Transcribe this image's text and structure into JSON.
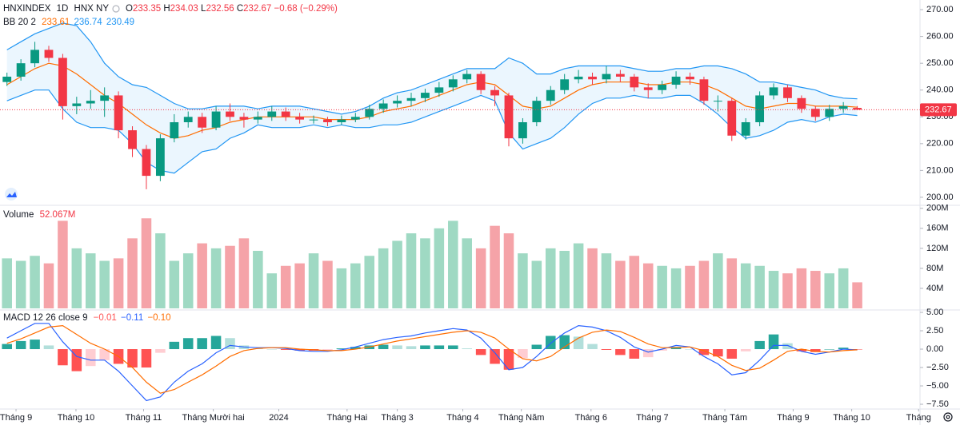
{
  "chart_data": [
    {
      "type": "candlestick",
      "symbol": "HNXINDEX",
      "interval": "1D",
      "exchange": "HNX NY",
      "ohlc_labels": [
        "O",
        "H",
        "L",
        "C"
      ],
      "change": "−0.68 (−0.29%)",
      "open": [
        243,
        245,
        250,
        255,
        252,
        234,
        235,
        236,
        238,
        225,
        218,
        208,
        222,
        228,
        230,
        226,
        232,
        230,
        229,
        230,
        232,
        230,
        229,
        229,
        228,
        229,
        230,
        233,
        235,
        236,
        237,
        239,
        241,
        244,
        246,
        240,
        238,
        222,
        228,
        236,
        240,
        244,
        245,
        244,
        246,
        245,
        241,
        240,
        242,
        245,
        244,
        236,
        236,
        223,
        228,
        238,
        241,
        237,
        233,
        230,
        233,
        233.35
      ],
      "high": [
        246.5,
        251.5,
        258,
        256.5,
        253.5,
        237.5,
        240,
        241,
        239.5,
        226.5,
        219.5,
        223.5,
        231,
        232,
        231.5,
        234,
        235,
        231.5,
        232,
        234,
        233.5,
        231.5,
        230.5,
        230,
        230.5,
        231.5,
        234.5,
        236.5,
        238,
        239,
        240.5,
        243,
        245.5,
        247.5,
        247,
        241.5,
        239,
        229.5,
        237.5,
        241.5,
        246,
        247.5,
        246.5,
        249,
        247.5,
        246,
        242.5,
        243.5,
        247,
        246.5,
        245,
        238,
        237,
        229.5,
        239.5,
        242.5,
        242,
        238,
        234,
        234.5,
        235.5,
        234.03
      ],
      "low": [
        241.5,
        243.5,
        248.5,
        250.5,
        229,
        231,
        233,
        230,
        222,
        215,
        203,
        206,
        220.5,
        226,
        224,
        225,
        228.5,
        226,
        227.5,
        228.5,
        228.5,
        227.5,
        227.5,
        226.5,
        227,
        228,
        229,
        231.5,
        233.5,
        234,
        235.5,
        237.5,
        239.5,
        242.5,
        238.5,
        234,
        219,
        220,
        226.5,
        234.5,
        238.5,
        242.5,
        242,
        242.5,
        243,
        239.5,
        237,
        238.5,
        240.5,
        242,
        234.5,
        232,
        221,
        221.5,
        226.5,
        236.5,
        235.5,
        231.5,
        228.5,
        228.5,
        231.5,
        232.56
      ],
      "close": [
        245,
        250,
        255,
        252,
        234,
        235,
        236,
        238,
        225,
        218,
        208,
        222,
        228,
        230,
        226,
        232,
        230,
        229,
        230,
        232,
        230,
        229,
        229,
        228,
        229,
        230,
        233,
        235,
        236,
        237,
        239,
        241,
        244,
        246,
        240,
        238,
        222,
        228,
        236,
        240,
        244,
        245,
        244,
        246,
        245,
        241,
        240,
        242,
        245,
        244,
        236,
        236,
        223,
        228,
        238,
        241,
        237,
        233,
        230,
        233,
        234,
        232.67
      ],
      "up_color": "#089981",
      "down_color": "#f23645",
      "bb": {
        "name": "BB 20 2",
        "upper": [
          255,
          258,
          261,
          263,
          265,
          264,
          258,
          250,
          245,
          242,
          241,
          238,
          235,
          233,
          233,
          234,
          234,
          234,
          233,
          234,
          234,
          234,
          233,
          232,
          231,
          232,
          234,
          237,
          239,
          240,
          242,
          244,
          246,
          248,
          248,
          248,
          252,
          250,
          246,
          246,
          248,
          249,
          249,
          249,
          249,
          248,
          247,
          247,
          248,
          248,
          249,
          249,
          248,
          246,
          243,
          243,
          242,
          241,
          240,
          238,
          237,
          236.74
        ],
        "basis": [
          242,
          245,
          248,
          250,
          249,
          246,
          242,
          238,
          235,
          231,
          227,
          224,
          222,
          223,
          225,
          226,
          228,
          229,
          230,
          230,
          230,
          230,
          230,
          229,
          229,
          229,
          230,
          232,
          233,
          234,
          236,
          238,
          240,
          242,
          243,
          242,
          238,
          234,
          233,
          234,
          237,
          240,
          242,
          243,
          243,
          243,
          242,
          242,
          243,
          243,
          242,
          240,
          237,
          234,
          233,
          234,
          235,
          235,
          234,
          234,
          234,
          233.61
        ],
        "lower": [
          236,
          238,
          240,
          240,
          233,
          228,
          226,
          226,
          225,
          220,
          213,
          210,
          209,
          213,
          217,
          218,
          222,
          224,
          227,
          226,
          226,
          226,
          227,
          226,
          227,
          226,
          226,
          227,
          227,
          228,
          230,
          232,
          234,
          236,
          238,
          236,
          224,
          218,
          220,
          222,
          226,
          231,
          235,
          237,
          237,
          238,
          237,
          237,
          238,
          238,
          235,
          231,
          226,
          222,
          223,
          225,
          228,
          229,
          228,
          230,
          231,
          230.49
        ],
        "band_color": "#2196f3",
        "basis_color": "#ff6d00",
        "fill": "rgba(33,150,243,0.09)"
      },
      "xlim": [
        -0.5,
        65.5
      ],
      "ylim": [
        197,
        273.6
      ],
      "yticks": [
        {
          "value": 200,
          "label": "200.00"
        },
        {
          "value": 210,
          "label": "210.00"
        },
        {
          "value": 220,
          "label": "220.00"
        },
        {
          "value": 230,
          "label": "230.00"
        },
        {
          "value": 240,
          "label": "240.00"
        },
        {
          "value": 250,
          "label": "250.00"
        },
        {
          "value": 260,
          "label": "260.00"
        },
        {
          "value": 270,
          "label": "270.00"
        }
      ]
    },
    {
      "type": "bar",
      "name": "Volume",
      "legend_value": "52.067M",
      "values": [
        100,
        95,
        105,
        90,
        175,
        120,
        110,
        95,
        100,
        140,
        180,
        150,
        95,
        110,
        130,
        120,
        125,
        140,
        115,
        70,
        85,
        90,
        110,
        95,
        80,
        90,
        105,
        120,
        135,
        150,
        140,
        160,
        175,
        140,
        120,
        165,
        150,
        110,
        95,
        120,
        115,
        130,
        120,
        110,
        95,
        105,
        90,
        85,
        80,
        85,
        95,
        110,
        100,
        90,
        85,
        75,
        70,
        80,
        75,
        70,
        80,
        52.067
      ],
      "up_color": "#9fd9c3",
      "down_color": "#f5a3a8",
      "xlim": [
        -0.5,
        65.5
      ],
      "ylim": [
        0,
        206
      ],
      "yticks": [
        {
          "value": 40,
          "label": "40M"
        },
        {
          "value": 80,
          "label": "80M"
        },
        {
          "value": 120,
          "label": "120M"
        },
        {
          "value": 160,
          "label": "160M"
        },
        {
          "value": 200,
          "label": "200M"
        }
      ]
    },
    {
      "type": "macd",
      "name": "MACD 12 26 close 9",
      "legend_values": [
        "−0.01",
        "−0.11",
        "−0.10"
      ],
      "histogram": [
        0.7,
        1.1,
        1.3,
        0.5,
        -2.2,
        -3,
        -2.3,
        -1.5,
        -2,
        -2.5,
        -2.5,
        -0.5,
        1,
        1.5,
        1.5,
        1.8,
        1.5,
        0.5,
        0.1,
        0,
        -0.1,
        -0.2,
        -0.2,
        -0.1,
        0.1,
        0.3,
        0.5,
        0.6,
        0.5,
        0.4,
        0.5,
        0.5,
        0.5,
        0.1,
        -0.8,
        -2,
        -2.8,
        -1.2,
        0.6,
        1.8,
        1.9,
        1.7,
        0.7,
        -0.1,
        -0.8,
        -1.3,
        -1.1,
        -0.2,
        0.3,
        0,
        -0.8,
        -1,
        -1.3,
        -0.3,
        1.1,
        2,
        0.8,
        -0.3,
        -0.4,
        0,
        0.2,
        -0.01
      ],
      "macd": [
        1.5,
        2.5,
        3.5,
        3.5,
        1,
        -1,
        -1.5,
        -1.5,
        -3,
        -5,
        -7,
        -6.5,
        -4.5,
        -3,
        -2,
        -0.5,
        0.5,
        0.3,
        0.2,
        0.2,
        0.1,
        -0.2,
        -0.3,
        -0.3,
        -0.1,
        0.3,
        0.8,
        1.3,
        1.6,
        1.8,
        2.2,
        2.5,
        2.8,
        2.6,
        1.5,
        -0.5,
        -2.8,
        -2.5,
        -1,
        0.8,
        2.2,
        3.2,
        3,
        2.5,
        1.6,
        0.3,
        -0.4,
        0,
        0.5,
        0.3,
        -1,
        -2,
        -3.5,
        -3.2,
        -1.5,
        0.5,
        0.5,
        -0.3,
        -0.7,
        -0.4,
        0,
        -0.11
      ],
      "signal": [
        0.8,
        1.4,
        2.2,
        3,
        3.2,
        2,
        0.8,
        0,
        -1,
        -2.5,
        -4.5,
        -6,
        -5.5,
        -4.5,
        -3.5,
        -2.3,
        -1,
        -0.2,
        0.1,
        0.2,
        0.2,
        0,
        -0.1,
        -0.2,
        -0.2,
        0,
        0.3,
        0.7,
        1.1,
        1.4,
        1.7,
        2,
        2.3,
        2.5,
        2.3,
        1.5,
        0,
        -1.3,
        -1.6,
        -1,
        0.3,
        1.5,
        2.3,
        2.6,
        2.4,
        1.6,
        0.7,
        0.2,
        0.2,
        0.3,
        -0.2,
        -1,
        -2.2,
        -2.9,
        -2.6,
        -1.5,
        -0.3,
        0,
        -0.3,
        -0.4,
        -0.2,
        -0.1
      ],
      "hist_colors": {
        "grow_above": "#26a69a",
        "fall_above": "#b2dfdb",
        "grow_below": "#ffcdd2",
        "fall_below": "#ff5252"
      },
      "macd_color": "#2962ff",
      "signal_color": "#ff6d00",
      "xlim": [
        -0.5,
        65.5
      ],
      "ylim": [
        -8.15,
        5.33
      ],
      "yticks": [
        {
          "value": -7.5,
          "label": "−7.50"
        },
        {
          "value": -5,
          "label": "−5.00"
        },
        {
          "value": -2.5,
          "label": "−2.50"
        },
        {
          "value": 0,
          "label": "0.00"
        },
        {
          "value": 2.5,
          "label": "2.50"
        },
        {
          "value": 5,
          "label": "5.00"
        }
      ],
      "xticks": [
        {
          "value": 0.65,
          "label": "Tháng 9"
        },
        {
          "value": 4.95,
          "label": "Tháng 10"
        },
        {
          "value": 9.8,
          "label": "Tháng 11"
        },
        {
          "value": 14.8,
          "label": "Tháng Mười hai"
        },
        {
          "value": 19.5,
          "label": "2024"
        },
        {
          "value": 24.4,
          "label": "Tháng Hai"
        },
        {
          "value": 28,
          "label": "Tháng 3"
        },
        {
          "value": 32.7,
          "label": "Tháng 4"
        },
        {
          "value": 36.9,
          "label": "Tháng Năm"
        },
        {
          "value": 41.9,
          "label": "Tháng 6"
        },
        {
          "value": 46.3,
          "label": "Tháng 7"
        },
        {
          "value": 51.5,
          "label": "Tháng Tám"
        },
        {
          "value": 56.4,
          "label": "Tháng 9"
        },
        {
          "value": 60.6,
          "label": "Tháng 10"
        },
        {
          "value": 65.4,
          "label": "Tháng"
        }
      ]
    }
  ]
}
